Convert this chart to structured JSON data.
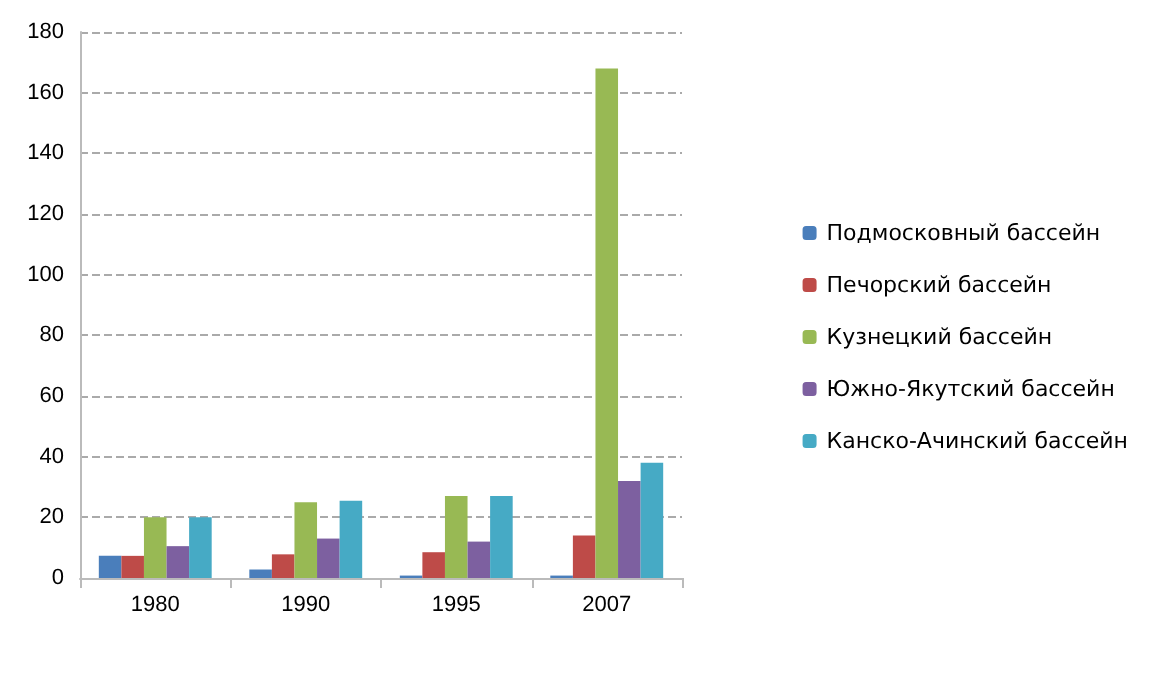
{
  "chart_data": {
    "type": "bar",
    "categories": [
      "1980",
      "1990",
      "1995",
      "2007"
    ],
    "series": [
      {
        "name": "Подмосковный бассейн",
        "color": "#4a7ebb",
        "values": [
          7.3,
          2.8,
          0.8,
          0.8
        ]
      },
      {
        "name": "Печорский бассейн",
        "color": "#be4b48",
        "values": [
          7.3,
          7.8,
          8.5,
          14
        ]
      },
      {
        "name": "Кузнецкий бассейн",
        "color": "#98b954",
        "values": [
          20,
          25,
          27,
          168
        ]
      },
      {
        "name": "Южно-Якутский бассейн",
        "color": "#7d60a0",
        "values": [
          10.5,
          13,
          12,
          32
        ]
      },
      {
        "name": "Канско-Ачинский бассейн",
        "color": "#46aac5",
        "values": [
          20,
          25.5,
          27,
          38
        ]
      }
    ],
    "ylim": [
      0,
      180
    ],
    "yticks": [
      0,
      20,
      40,
      60,
      80,
      100,
      120,
      140,
      160,
      180
    ],
    "grid": "y",
    "legend": "right"
  }
}
